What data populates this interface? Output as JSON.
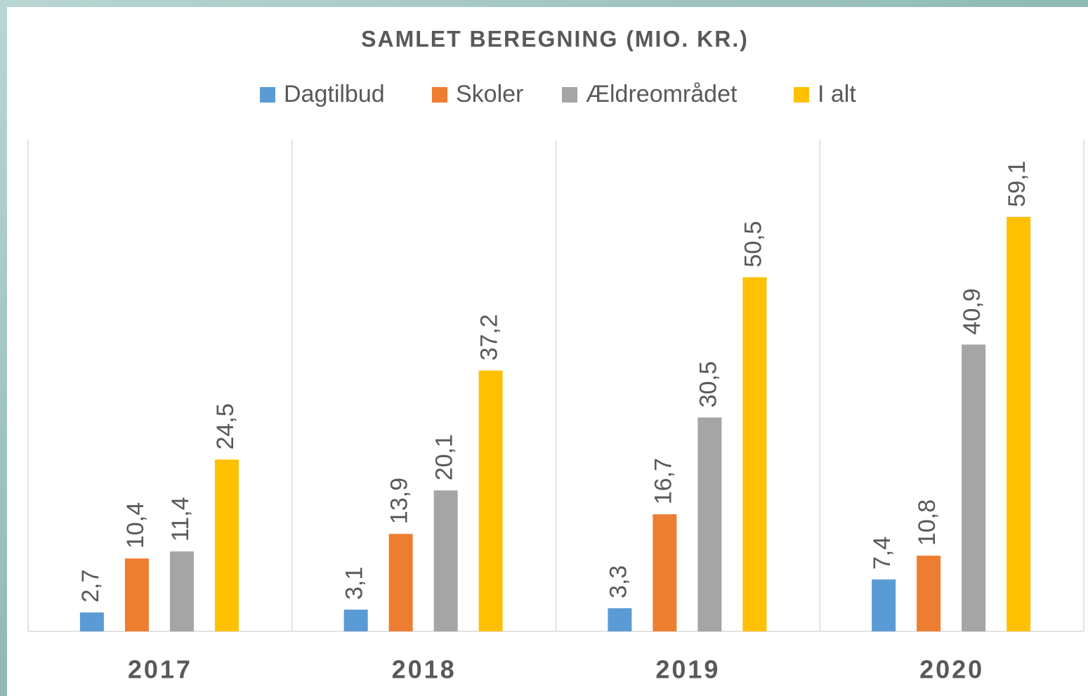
{
  "chart_data": {
    "type": "bar",
    "title": "SAMLET BEREGNING (MIO. KR.)",
    "categories": [
      "2017",
      "2018",
      "2019",
      "2020"
    ],
    "series": [
      {
        "name": "Dagtilbud",
        "color": "#5b9bd5",
        "values": [
          2.7,
          3.1,
          3.3,
          7.4
        ],
        "value_labels": [
          "2,7",
          "3,1",
          "3,3",
          "7,4"
        ]
      },
      {
        "name": "Skoler",
        "color": "#ed7d31",
        "values": [
          10.4,
          13.9,
          16.7,
          10.8
        ],
        "value_labels": [
          "10,4",
          "13,9",
          "16,7",
          "10,8"
        ]
      },
      {
        "name": "Ældreområdet",
        "color": "#a5a5a5",
        "values": [
          11.4,
          20.1,
          30.5,
          40.9
        ],
        "value_labels": [
          "11,4",
          "20,1",
          "30,5",
          "40,9"
        ]
      },
      {
        "name": "I alt",
        "color": "#ffc000",
        "values": [
          24.5,
          37.2,
          50.5,
          59.1
        ],
        "value_labels": [
          "24,5",
          "37,2",
          "50,5",
          "59,1"
        ]
      }
    ],
    "ylim": [
      0,
      70
    ],
    "legend": "top"
  }
}
